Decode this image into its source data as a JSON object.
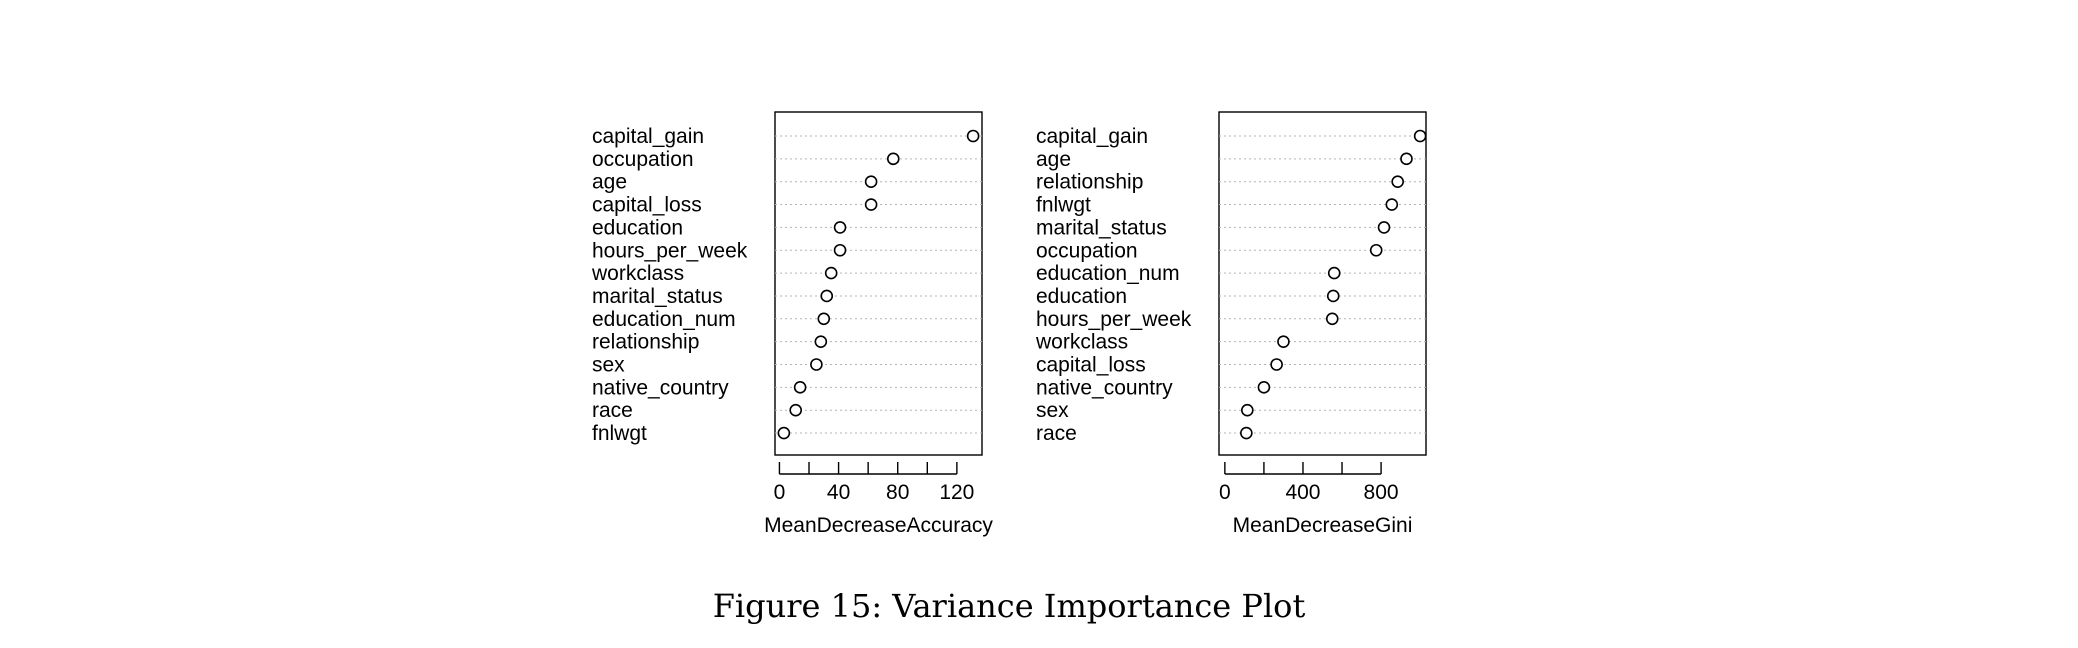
{
  "caption": "Figure 15:  Variance Importance Plot",
  "chart_data": [
    {
      "type": "scatter",
      "xlabel": "MeanDecreaseAccuracy",
      "xlim": [
        -3,
        137
      ],
      "ticks": [
        0,
        40,
        80,
        120
      ],
      "categories": [
        "capital_gain",
        "occupation",
        "age",
        "capital_loss",
        "education",
        "hours_per_week",
        "workclass",
        "marital_status",
        "education_num",
        "relationship",
        "sex",
        "native_country",
        "race",
        "fnlwgt"
      ],
      "values": [
        131,
        77,
        62,
        62,
        41,
        41,
        35,
        32,
        30,
        28,
        25,
        14,
        11,
        3
      ]
    },
    {
      "type": "scatter",
      "xlabel": "MeanDecreaseGini",
      "xlim": [
        -30,
        1030
      ],
      "ticks": [
        0,
        400,
        800
      ],
      "categories": [
        "capital_gain",
        "age",
        "relationship",
        "fnlwgt",
        "marital_status",
        "occupation",
        "education_num",
        "education",
        "hours_per_week",
        "workclass",
        "capital_loss",
        "native_country",
        "sex",
        "race"
      ],
      "values": [
        1000,
        930,
        885,
        855,
        815,
        775,
        560,
        555,
        550,
        300,
        265,
        200,
        115,
        110
      ]
    }
  ]
}
